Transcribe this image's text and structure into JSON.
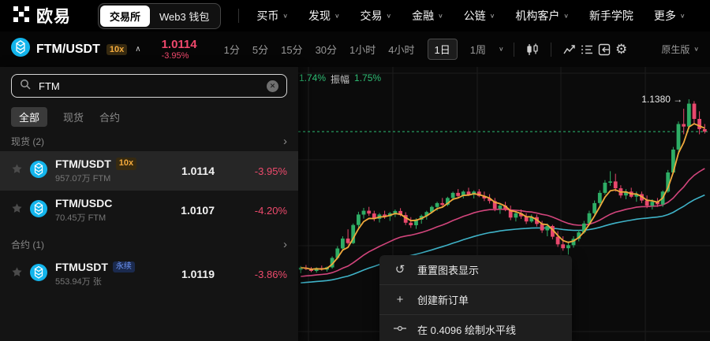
{
  "navbar": {
    "brand": "欧易",
    "mode_tabs": [
      {
        "label": "交易所",
        "active": true
      },
      {
        "label": "Web3 钱包",
        "active": false
      }
    ],
    "items": [
      {
        "label": "买币",
        "chevron": true
      },
      {
        "label": "发现",
        "chevron": true
      },
      {
        "label": "交易",
        "chevron": true
      },
      {
        "label": "金融",
        "chevron": true
      },
      {
        "label": "公链",
        "chevron": true
      },
      {
        "label": "机构客户",
        "chevron": true
      },
      {
        "label": "新手学院",
        "chevron": false
      },
      {
        "label": "更多",
        "chevron": true
      }
    ]
  },
  "toolbar": {
    "pair": "FTM/USDT",
    "leverage": "10x",
    "price": "1.0114",
    "change": "-3.95%",
    "timeframes": [
      "1分",
      "5分",
      "15分",
      "30分",
      "1小时",
      "4小时",
      "1日",
      "1周"
    ],
    "active_timeframe": "1日",
    "right_label": "原生版"
  },
  "search_panel": {
    "search_value": "FTM",
    "tabs": [
      {
        "label": "全部",
        "active": true
      },
      {
        "label": "现货",
        "active": false
      },
      {
        "label": "合约",
        "active": false
      }
    ],
    "sections": [
      {
        "title": "现货 (2)",
        "rows": [
          {
            "pair": "FTM/USDT",
            "badge": "10x",
            "badge_type": "leverage",
            "subtitle": "957.07万 FTM",
            "price": "1.0114",
            "change": "-3.95%",
            "highlighted": true
          },
          {
            "pair": "FTM/USDC",
            "badge": "",
            "badge_type": "",
            "subtitle": "70.45万 FTM",
            "price": "1.0107",
            "change": "-4.20%",
            "highlighted": false
          }
        ]
      },
      {
        "title": "合约 (1)",
        "rows": [
          {
            "pair": "FTMUSDT",
            "badge": "永续",
            "badge_type": "perpetual",
            "subtitle": "553.94万 张",
            "price": "1.0119",
            "change": "-3.86%",
            "highlighted": false
          }
        ]
      }
    ]
  },
  "context_menu": {
    "items": [
      {
        "icon": "reset-icon",
        "label": "重置图表显示"
      },
      {
        "icon": "plus-icon",
        "label": "创建新订单"
      },
      {
        "icon": "horizontal-line-icon",
        "label": "在 0.4096 绘制水平线"
      }
    ]
  },
  "chart_data": {
    "type": "candlestick",
    "pair": "FTM/USDT",
    "interval": "1日",
    "info": {
      "change_pct": "1.74%",
      "amplitude_label": "振幅",
      "amplitude_pct": "1.75%"
    },
    "high_label": "1.1380",
    "last_price": 1.0114,
    "ylim": [
      0.19,
      1.265
    ],
    "colors": {
      "up": "#2ead65",
      "down": "#e8486d",
      "price_line": "#2dbd74",
      "grid": "#1d1d1d",
      "label": "#e8e8e8"
    },
    "ma_lines": [
      {
        "name": "ma-fast",
        "color": "#f0a93c",
        "period": 4,
        "seed_offset": 0
      },
      {
        "name": "ma-mid",
        "color": "#d2457c",
        "period": 24,
        "seed_offset": -0.035
      },
      {
        "name": "ma-slow",
        "color": "#3fb3c8",
        "period": 56,
        "seed_offset": -0.06
      }
    ],
    "candles": [
      [
        0.47,
        0.484,
        0.456,
        0.478
      ],
      [
        0.478,
        0.488,
        0.468,
        0.472
      ],
      [
        0.472,
        0.48,
        0.46,
        0.465
      ],
      [
        0.465,
        0.479,
        0.458,
        0.476
      ],
      [
        0.476,
        0.486,
        0.466,
        0.47
      ],
      [
        0.47,
        0.482,
        0.462,
        0.479
      ],
      [
        0.479,
        0.522,
        0.474,
        0.516
      ],
      [
        0.516,
        0.562,
        0.51,
        0.553
      ],
      [
        0.553,
        0.601,
        0.546,
        0.592
      ],
      [
        0.592,
        0.628,
        0.568,
        0.574
      ],
      [
        0.574,
        0.651,
        0.57,
        0.645
      ],
      [
        0.645,
        0.697,
        0.634,
        0.686
      ],
      [
        0.686,
        0.712,
        0.67,
        0.701
      ],
      [
        0.701,
        0.716,
        0.681,
        0.69
      ],
      [
        0.69,
        0.701,
        0.66,
        0.669
      ],
      [
        0.669,
        0.692,
        0.655,
        0.686
      ],
      [
        0.686,
        0.701,
        0.669,
        0.679
      ],
      [
        0.679,
        0.696,
        0.661,
        0.691
      ],
      [
        0.691,
        0.706,
        0.676,
        0.7
      ],
      [
        0.7,
        0.711,
        0.679,
        0.684
      ],
      [
        0.684,
        0.695,
        0.645,
        0.654
      ],
      [
        0.654,
        0.676,
        0.634,
        0.644
      ],
      [
        0.644,
        0.671,
        0.63,
        0.666
      ],
      [
        0.666,
        0.686,
        0.65,
        0.681
      ],
      [
        0.681,
        0.701,
        0.666,
        0.696
      ],
      [
        0.696,
        0.721,
        0.69,
        0.716
      ],
      [
        0.716,
        0.736,
        0.701,
        0.731
      ],
      [
        0.731,
        0.751,
        0.719,
        0.724
      ],
      [
        0.724,
        0.756,
        0.719,
        0.751
      ],
      [
        0.751,
        0.776,
        0.741,
        0.771
      ],
      [
        0.771,
        0.786,
        0.754,
        0.759
      ],
      [
        0.759,
        0.781,
        0.749,
        0.776
      ],
      [
        0.776,
        0.791,
        0.759,
        0.764
      ],
      [
        0.764,
        0.781,
        0.749,
        0.776
      ],
      [
        0.776,
        0.786,
        0.754,
        0.759
      ],
      [
        0.759,
        0.776,
        0.739,
        0.749
      ],
      [
        0.749,
        0.766,
        0.729,
        0.739
      ],
      [
        0.739,
        0.751,
        0.699,
        0.709
      ],
      [
        0.709,
        0.731,
        0.689,
        0.721
      ],
      [
        0.721,
        0.736,
        0.699,
        0.704
      ],
      [
        0.704,
        0.721,
        0.664,
        0.674
      ],
      [
        0.674,
        0.701,
        0.659,
        0.691
      ],
      [
        0.691,
        0.706,
        0.669,
        0.679
      ],
      [
        0.679,
        0.691,
        0.649,
        0.659
      ],
      [
        0.659,
        0.686,
        0.654,
        0.676
      ],
      [
        0.676,
        0.686,
        0.639,
        0.649
      ],
      [
        0.649,
        0.661,
        0.614,
        0.624
      ],
      [
        0.624,
        0.651,
        0.601,
        0.641
      ],
      [
        0.641,
        0.646,
        0.589,
        0.599
      ],
      [
        0.599,
        0.621,
        0.559,
        0.569
      ],
      [
        0.569,
        0.601,
        0.544,
        0.554
      ],
      [
        0.554,
        0.581,
        0.529,
        0.566
      ],
      [
        0.566,
        0.601,
        0.556,
        0.591
      ],
      [
        0.591,
        0.626,
        0.581,
        0.616
      ],
      [
        0.616,
        0.661,
        0.611,
        0.651
      ],
      [
        0.651,
        0.701,
        0.646,
        0.691
      ],
      [
        0.691,
        0.741,
        0.686,
        0.731
      ],
      [
        0.731,
        0.781,
        0.721,
        0.771
      ],
      [
        0.771,
        0.821,
        0.764,
        0.811
      ],
      [
        0.811,
        0.856,
        0.799,
        0.816
      ],
      [
        0.816,
        0.846,
        0.776,
        0.789
      ],
      [
        0.789,
        0.801,
        0.751,
        0.761
      ],
      [
        0.761,
        0.786,
        0.746,
        0.776
      ],
      [
        0.776,
        0.791,
        0.751,
        0.756
      ],
      [
        0.756,
        0.776,
        0.736,
        0.766
      ],
      [
        0.766,
        0.776,
        0.731,
        0.741
      ],
      [
        0.741,
        0.761,
        0.711,
        0.721
      ],
      [
        0.721,
        0.746,
        0.706,
        0.736
      ],
      [
        0.736,
        0.751,
        0.716,
        0.726
      ],
      [
        0.726,
        0.781,
        0.716,
        0.776
      ],
      [
        0.776,
        0.861,
        0.771,
        0.851
      ],
      [
        0.851,
        0.951,
        0.846,
        0.941
      ],
      [
        0.941,
        1.051,
        0.931,
        1.041
      ],
      [
        1.041,
        1.101,
        1.001,
        1.031
      ],
      [
        1.031,
        1.138,
        1.021,
        1.121
      ],
      [
        1.121,
        1.131,
        1.041,
        1.061
      ],
      [
        1.061,
        1.091,
        1.001,
        1.021
      ],
      [
        1.021,
        1.041,
        1.004,
        1.0114
      ]
    ]
  }
}
